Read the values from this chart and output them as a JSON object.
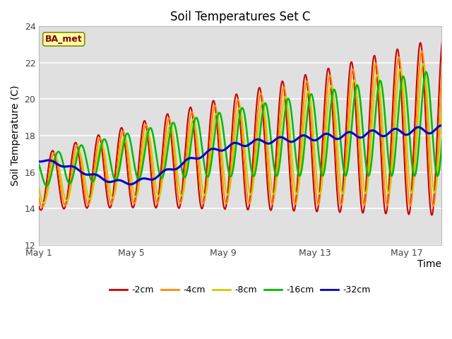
{
  "title": "Soil Temperatures Set C",
  "xlabel": "Time",
  "ylabel": "Soil Temperature (C)",
  "ylim": [
    12,
    24
  ],
  "yticks": [
    12,
    14,
    16,
    18,
    20,
    22,
    24
  ],
  "xtick_labels": [
    "May 1",
    "May 5",
    "May 9",
    "May 13",
    "May 17"
  ],
  "legend_labels": [
    "-2cm",
    "-4cm",
    "-8cm",
    "-16cm",
    "-32cm"
  ],
  "legend_colors": [
    "#cc0000",
    "#ff8c00",
    "#cccc00",
    "#00bb00",
    "#0000cc"
  ],
  "line_widths": [
    1.5,
    1.5,
    1.5,
    1.8,
    2.2
  ],
  "bg_color": "#e0e0e0",
  "annotation_text": "BA_met",
  "annotation_color": "#880000",
  "annotation_bg": "#ffffaa",
  "annotation_border": "#888800",
  "n_days": 18,
  "n_per_day": 48
}
